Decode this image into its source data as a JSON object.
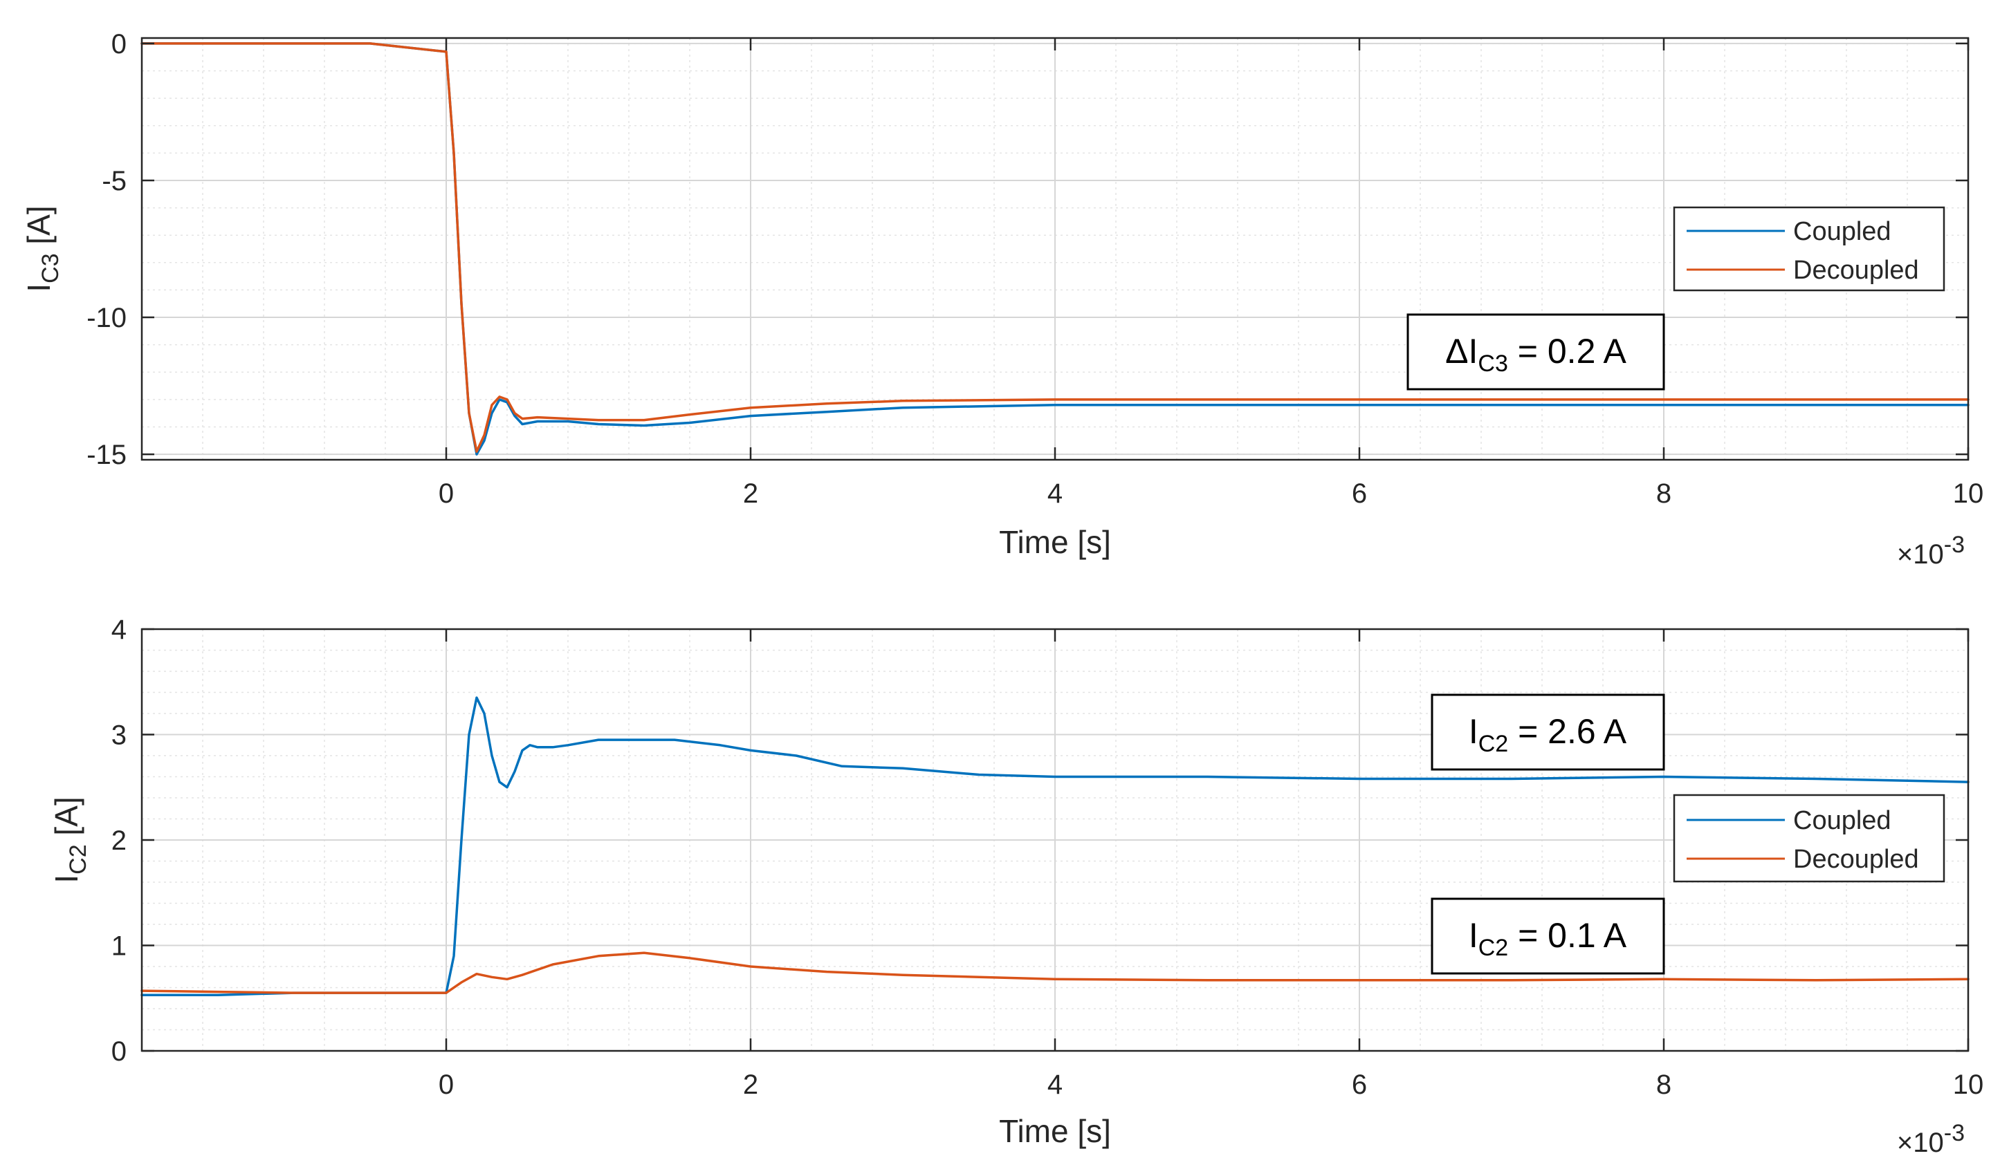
{
  "chart_data": [
    {
      "type": "line",
      "xlabel": "Time [s]",
      "x_exponent": "×10",
      "x_exponent_power": "-3",
      "ylabel_main": "I",
      "ylabel_sub": "C3",
      "ylabel_unit": " [A]",
      "xlim": [
        -2.0,
        10.0
      ],
      "ylim": [
        -15.2,
        0.2
      ],
      "x_ticks": [
        0,
        2,
        4,
        6,
        8,
        10
      ],
      "x_tick_labels": [
        "0",
        "2",
        "4",
        "6",
        "8",
        "10"
      ],
      "y_ticks": [
        0,
        -5,
        -10,
        -15
      ],
      "y_tick_labels": [
        "0",
        "-5",
        "-10",
        "-15"
      ],
      "grid": true,
      "legend_position": "top-right",
      "series": [
        {
          "name": "Coupled",
          "color": "#0072BD",
          "x": [
            -2.0,
            -0.5,
            0.0,
            0.05,
            0.1,
            0.15,
            0.2,
            0.25,
            0.3,
            0.35,
            0.4,
            0.45,
            0.5,
            0.6,
            0.8,
            1.0,
            1.3,
            1.6,
            2.0,
            2.5,
            3.0,
            4.0,
            5.0,
            6.0,
            7.0,
            8.0,
            9.0,
            10.0
          ],
          "y": [
            0.0,
            0.0,
            -0.3,
            -4.0,
            -9.5,
            -13.5,
            -15.0,
            -14.5,
            -13.5,
            -13.0,
            -13.1,
            -13.6,
            -13.9,
            -13.8,
            -13.8,
            -13.9,
            -13.95,
            -13.85,
            -13.6,
            -13.45,
            -13.3,
            -13.2,
            -13.2,
            -13.2,
            -13.2,
            -13.2,
            -13.2,
            -13.2
          ]
        },
        {
          "name": "Decoupled",
          "color": "#D95319",
          "x": [
            -2.0,
            -0.5,
            0.0,
            0.05,
            0.1,
            0.15,
            0.2,
            0.25,
            0.3,
            0.35,
            0.4,
            0.45,
            0.5,
            0.6,
            0.8,
            1.0,
            1.3,
            1.6,
            2.0,
            2.5,
            3.0,
            4.0,
            5.0,
            6.0,
            7.0,
            8.0,
            9.0,
            10.0
          ],
          "y": [
            0.0,
            0.0,
            -0.3,
            -4.0,
            -9.5,
            -13.5,
            -14.9,
            -14.3,
            -13.2,
            -12.9,
            -13.0,
            -13.5,
            -13.7,
            -13.65,
            -13.7,
            -13.75,
            -13.75,
            -13.55,
            -13.3,
            -13.15,
            -13.05,
            -13.0,
            -13.0,
            -13.0,
            -13.0,
            -13.0,
            -13.0,
            -13.0
          ]
        }
      ],
      "annotations": [
        {
          "prefix": "ΔI",
          "sub": "C3",
          "suffix": " = 0.2 A"
        }
      ]
    },
    {
      "type": "line",
      "xlabel": "Time [s]",
      "x_exponent": "×10",
      "x_exponent_power": "-3",
      "ylabel_main": "I",
      "ylabel_sub": "C2",
      "ylabel_unit": " [A]",
      "xlim": [
        -2.0,
        10.0
      ],
      "ylim": [
        0,
        4
      ],
      "x_ticks": [
        0,
        2,
        4,
        6,
        8,
        10
      ],
      "x_tick_labels": [
        "0",
        "2",
        "4",
        "6",
        "8",
        "10"
      ],
      "y_ticks": [
        0,
        1,
        2,
        3,
        4
      ],
      "y_tick_labels": [
        "0",
        "1",
        "2",
        "3",
        "4"
      ],
      "grid": true,
      "legend_position": "center-right",
      "series": [
        {
          "name": "Coupled",
          "color": "#0072BD",
          "x": [
            -2.0,
            -1.5,
            -1.0,
            -0.5,
            0.0,
            0.05,
            0.1,
            0.15,
            0.2,
            0.25,
            0.3,
            0.35,
            0.4,
            0.45,
            0.5,
            0.55,
            0.6,
            0.7,
            0.8,
            1.0,
            1.2,
            1.5,
            1.8,
            2.0,
            2.3,
            2.6,
            3.0,
            3.5,
            4.0,
            5.0,
            6.0,
            7.0,
            8.0,
            9.0,
            10.0
          ],
          "y": [
            0.53,
            0.53,
            0.55,
            0.55,
            0.55,
            0.9,
            2.0,
            3.0,
            3.35,
            3.2,
            2.8,
            2.55,
            2.5,
            2.65,
            2.85,
            2.9,
            2.88,
            2.88,
            2.9,
            2.95,
            2.95,
            2.95,
            2.9,
            2.85,
            2.8,
            2.7,
            2.68,
            2.62,
            2.6,
            2.6,
            2.58,
            2.58,
            2.6,
            2.58,
            2.55
          ]
        },
        {
          "name": "Decoupled",
          "color": "#D95319",
          "x": [
            -2.0,
            -1.5,
            -1.0,
            -0.5,
            0.0,
            0.1,
            0.2,
            0.3,
            0.4,
            0.5,
            0.7,
            1.0,
            1.3,
            1.6,
            2.0,
            2.5,
            3.0,
            4.0,
            5.0,
            6.0,
            7.0,
            8.0,
            9.0,
            10.0
          ],
          "y": [
            0.57,
            0.56,
            0.55,
            0.55,
            0.55,
            0.65,
            0.73,
            0.7,
            0.68,
            0.72,
            0.82,
            0.9,
            0.93,
            0.88,
            0.8,
            0.75,
            0.72,
            0.68,
            0.67,
            0.67,
            0.67,
            0.68,
            0.67,
            0.68
          ]
        }
      ],
      "annotations": [
        {
          "prefix": "I",
          "sub": "C2",
          "suffix": " = 2.6 A"
        },
        {
          "prefix": "I",
          "sub": "C2",
          "suffix": " = 0.1 A"
        }
      ]
    }
  ]
}
